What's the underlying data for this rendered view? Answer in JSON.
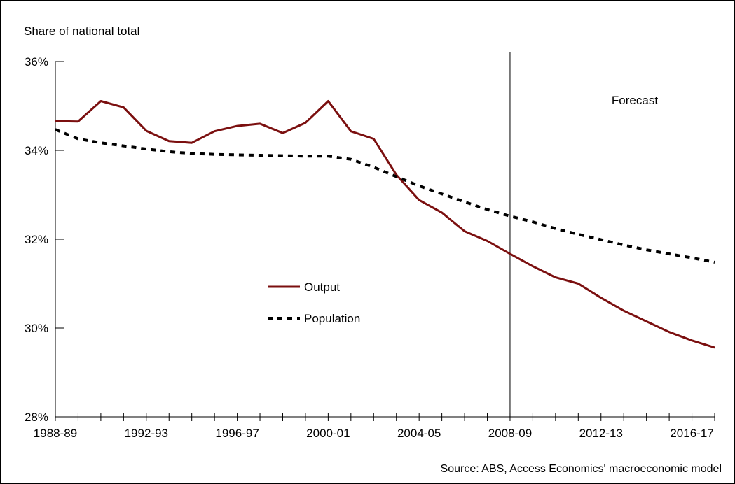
{
  "chart_data": {
    "type": "line",
    "title": "",
    "ylabel": "Share of national total",
    "xlabel": "",
    "ylim": [
      28,
      36
    ],
    "yticks": [
      28,
      30,
      32,
      34,
      36
    ],
    "ytick_labels": [
      "28%",
      "30%",
      "32%",
      "34%",
      "36%"
    ],
    "x": [
      "1988-89",
      "1989-90",
      "1990-91",
      "1991-92",
      "1992-93",
      "1993-94",
      "1994-95",
      "1995-96",
      "1996-97",
      "1997-98",
      "1998-99",
      "1999-00",
      "2000-01",
      "2001-02",
      "2002-03",
      "2003-04",
      "2004-05",
      "2005-06",
      "2006-07",
      "2007-08",
      "2008-09",
      "2009-10",
      "2010-11",
      "2011-12",
      "2012-13",
      "2013-14",
      "2014-15",
      "2015-16",
      "2016-17",
      "2017-18"
    ],
    "xtick_labels": [
      "1988-89",
      "1992-93",
      "1996-97",
      "2000-01",
      "2004-05",
      "2008-09",
      "2012-13",
      "2016-17"
    ],
    "series": [
      {
        "name": "Output",
        "color": "#7b0f0f",
        "style": "solid",
        "values": [
          34.66,
          34.65,
          35.11,
          34.97,
          34.44,
          34.21,
          34.17,
          34.43,
          34.55,
          34.6,
          34.39,
          34.62,
          35.11,
          34.43,
          34.26,
          33.45,
          32.88,
          32.6,
          32.18,
          31.96,
          31.67,
          31.39,
          31.14,
          31.0,
          30.68,
          30.39,
          30.15,
          29.91,
          29.72,
          29.56
        ]
      },
      {
        "name": "Population",
        "color": "#000000",
        "style": "dotted",
        "values": [
          34.47,
          34.26,
          34.17,
          34.1,
          34.03,
          33.97,
          33.93,
          33.91,
          33.9,
          33.89,
          33.88,
          33.87,
          33.87,
          33.8,
          33.62,
          33.41,
          33.2,
          33.02,
          32.84,
          32.67,
          32.52,
          32.39,
          32.24,
          32.11,
          31.99,
          31.87,
          31.76,
          31.67,
          31.58,
          31.48
        ]
      }
    ],
    "forecast_start": "2008-09",
    "annotation": "Forecast",
    "legend_position": "center-left",
    "grid": false,
    "source": "Source: ABS, Access Economics' macroeconomic model"
  }
}
